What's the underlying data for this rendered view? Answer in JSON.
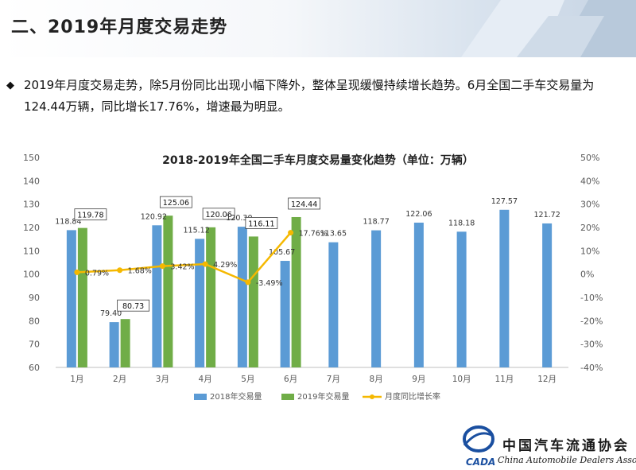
{
  "header": {
    "title": "二、2019年月度交易走势"
  },
  "summary": {
    "text": "2019年月度交易走势，除5月份同比出现小幅下降外，整体呈现缓慢持续增长趋势。6月全国二手车交易量为124.44万辆，同比增长17.76%，增速最为明显。"
  },
  "colors": {
    "bar2018": "#5b9bd5",
    "bar2019": "#70ad47",
    "growth": "#f5b800"
  },
  "chart_data": {
    "type": "bar",
    "title": "2018-2019年全国二手车月度交易量变化趋势（单位：万辆）",
    "categories": [
      "1月",
      "2月",
      "3月",
      "4月",
      "5月",
      "6月",
      "7月",
      "8月",
      "9月",
      "10月",
      "11月",
      "12月"
    ],
    "series": [
      {
        "name": "2018年交易量",
        "type": "bar",
        "values": [
          118.84,
          79.4,
          120.92,
          115.12,
          120.3,
          105.67,
          113.65,
          118.77,
          122.06,
          118.18,
          127.57,
          121.72
        ]
      },
      {
        "name": "2019年交易量",
        "type": "bar",
        "values": [
          119.78,
          80.73,
          125.06,
          120.06,
          116.11,
          124.44,
          null,
          null,
          null,
          null,
          null,
          null
        ]
      },
      {
        "name": "月度同比增长率",
        "type": "line",
        "axis": "right",
        "values": [
          0.79,
          1.68,
          3.42,
          4.29,
          -3.49,
          17.76,
          null,
          null,
          null,
          null,
          null,
          null
        ]
      }
    ],
    "bar_labels_2018": [
      "118.84",
      "79.40",
      "120.92",
      "115.12",
      "120.30",
      "105.67",
      "113.65",
      "118.77",
      "122.06",
      "118.18",
      "127.57",
      "121.72"
    ],
    "bar_labels_2019": [
      "119.78",
      "80.73",
      "125.06",
      "120.06",
      "116.11",
      "124.44"
    ],
    "growth_labels": [
      "0.79%",
      "1.68%",
      "3.42%",
      "4.29%",
      "-3.49%",
      "17.76%"
    ],
    "yticks_left": [
      "150",
      "140",
      "130",
      "120",
      "110",
      "100",
      "90",
      "80",
      "70",
      "60"
    ],
    "yticks_right": [
      "50%",
      "40%",
      "30%",
      "20%",
      "10%",
      "0%",
      "-10%",
      "-20%",
      "-30%",
      "-40%"
    ],
    "ylim_left": [
      60,
      150
    ],
    "ylim_right": [
      -40,
      50
    ],
    "legend_position": "bottom",
    "grid": false
  },
  "logo": {
    "cn": "中国汽车流通协会",
    "en": "China Automobile Dealers Association",
    "mark": "CADA"
  }
}
